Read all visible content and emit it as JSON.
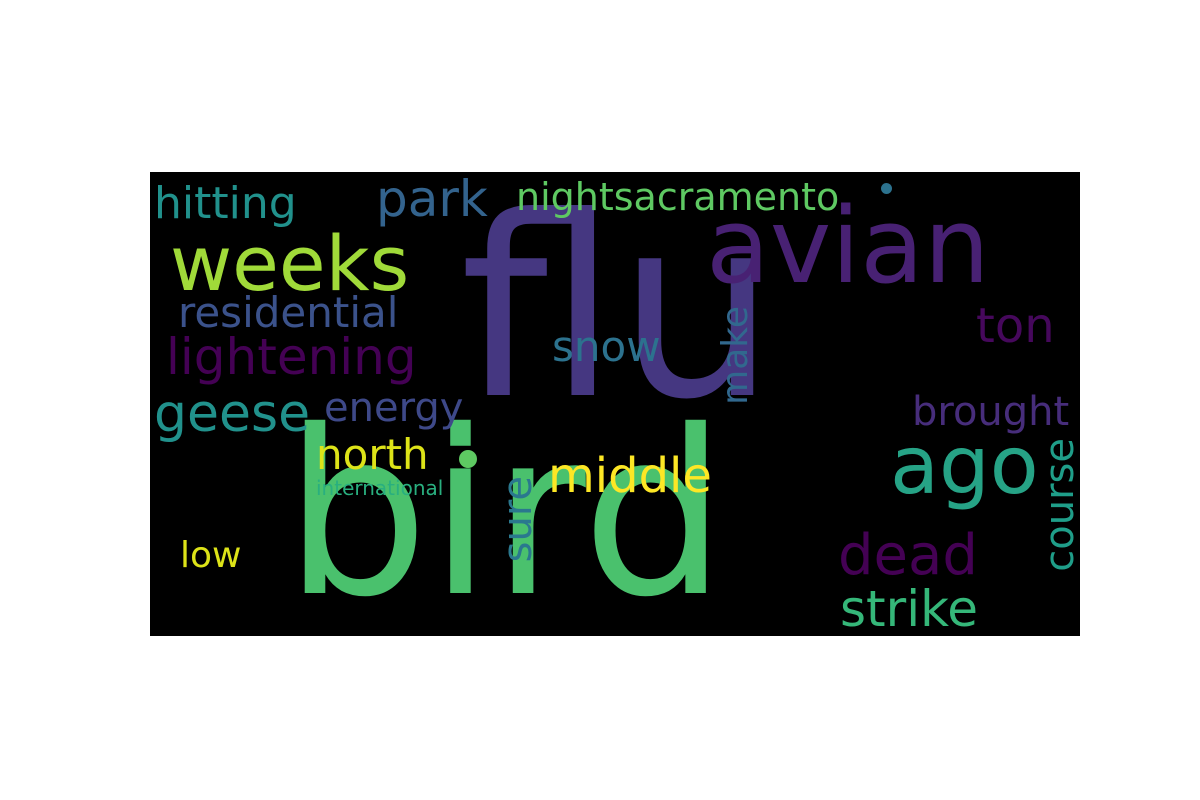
{
  "words": [
    {
      "text": "flu",
      "color": "#453781"
    },
    {
      "text": "bird",
      "color": "#4ac16d"
    },
    {
      "text": "avian",
      "color": "#482173"
    },
    {
      "text": "weeks",
      "color": "#a0da39"
    },
    {
      "text": "park",
      "color": "#33638d"
    },
    {
      "text": "hitting",
      "color": "#21918c"
    },
    {
      "text": "nightsacramento",
      "color": "#5ec962"
    },
    {
      "text": "residential",
      "color": "#3b528b"
    },
    {
      "text": "lightening",
      "color": "#440154"
    },
    {
      "text": "ton",
      "color": "#46085c"
    },
    {
      "text": "snow",
      "color": "#2c728e"
    },
    {
      "text": "make",
      "color": "#31688e"
    },
    {
      "text": "geese",
      "color": "#21918c"
    },
    {
      "text": "energy",
      "color": "#3e4989"
    },
    {
      "text": "brought",
      "color": "#472d7b"
    },
    {
      "text": "ago",
      "color": "#26a386"
    },
    {
      "text": "north",
      "color": "#dde318"
    },
    {
      "text": "international",
      "color": "#29af7f"
    },
    {
      "text": "middle",
      "color": "#fde725"
    },
    {
      "text": "sure",
      "color": "#2a788e"
    },
    {
      "text": "course",
      "color": "#1f9e89"
    },
    {
      "text": "dead",
      "color": "#440154"
    },
    {
      "text": "low",
      "color": "#dde318"
    },
    {
      "text": "strike",
      "color": "#35b779"
    }
  ],
  "dots": [
    {
      "color": "#2c728e"
    },
    {
      "color": "#5ec962"
    }
  ]
}
